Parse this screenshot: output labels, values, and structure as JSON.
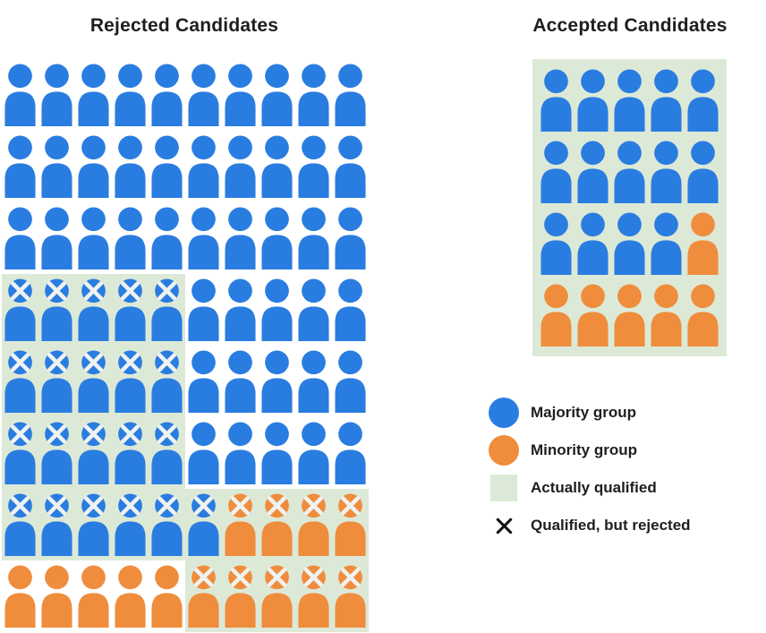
{
  "titles": {
    "rejected": "Rejected Candidates",
    "accepted": "Accepted Candidates"
  },
  "colors": {
    "majority": "#2a7de0",
    "minority": "#ef8d3d",
    "qualified_bg": "#dde9d7",
    "icon_x": "#eef2f0",
    "legend_x": "#111111",
    "text": "#1c1e21"
  },
  "cell_code_key": {
    "b": "majority group person",
    "o": "minority group person",
    "x": "qualified but rejected (X mark)",
    "q": "actually qualified (green background)"
  },
  "rejected_grid": {
    "columns": 10,
    "rows": [
      [
        "b",
        "b",
        "b",
        "b",
        "b",
        "b",
        "b",
        "b",
        "b",
        "b"
      ],
      [
        "b",
        "b",
        "b",
        "b",
        "b",
        "b",
        "b",
        "b",
        "b",
        "b"
      ],
      [
        "b",
        "b",
        "b",
        "b",
        "b",
        "b",
        "b",
        "b",
        "b",
        "b"
      ],
      [
        "bxq",
        "bxq",
        "bxq",
        "bxq",
        "bxq",
        "b",
        "b",
        "b",
        "b",
        "b"
      ],
      [
        "bxq",
        "bxq",
        "bxq",
        "bxq",
        "bxq",
        "b",
        "b",
        "b",
        "b",
        "b"
      ],
      [
        "bxq",
        "bxq",
        "bxq",
        "bxq",
        "bxq",
        "b",
        "b",
        "b",
        "b",
        "b"
      ],
      [
        "bxq",
        "bxq",
        "bxq",
        "bxq",
        "bxq",
        "bxq",
        "oxq",
        "oxq",
        "oxq",
        "oxq"
      ],
      [
        "o",
        "o",
        "o",
        "o",
        "o",
        "oxq",
        "oxq",
        "oxq",
        "oxq",
        "oxq"
      ]
    ]
  },
  "accepted_grid": {
    "columns": 5,
    "rows": [
      [
        "bq",
        "bq",
        "bq",
        "bq",
        "bq"
      ],
      [
        "bq",
        "bq",
        "bq",
        "bq",
        "bq"
      ],
      [
        "bq",
        "bq",
        "bq",
        "bq",
        "oq"
      ],
      [
        "oq",
        "oq",
        "oq",
        "oq",
        "oq"
      ]
    ]
  },
  "legend": {
    "items": [
      {
        "swatch": "circle",
        "color": "majority",
        "icon": "majority-circle-icon",
        "label": "Majority group"
      },
      {
        "swatch": "circle",
        "color": "minority",
        "icon": "minority-circle-icon",
        "label": "Minority group"
      },
      {
        "swatch": "square",
        "color": "qualified_bg",
        "icon": "qualified-square-icon",
        "label": "Actually qualified"
      },
      {
        "swatch": "x",
        "color": "legend_x",
        "icon": "x-mark-icon",
        "label": "Qualified, but rejected"
      }
    ]
  }
}
